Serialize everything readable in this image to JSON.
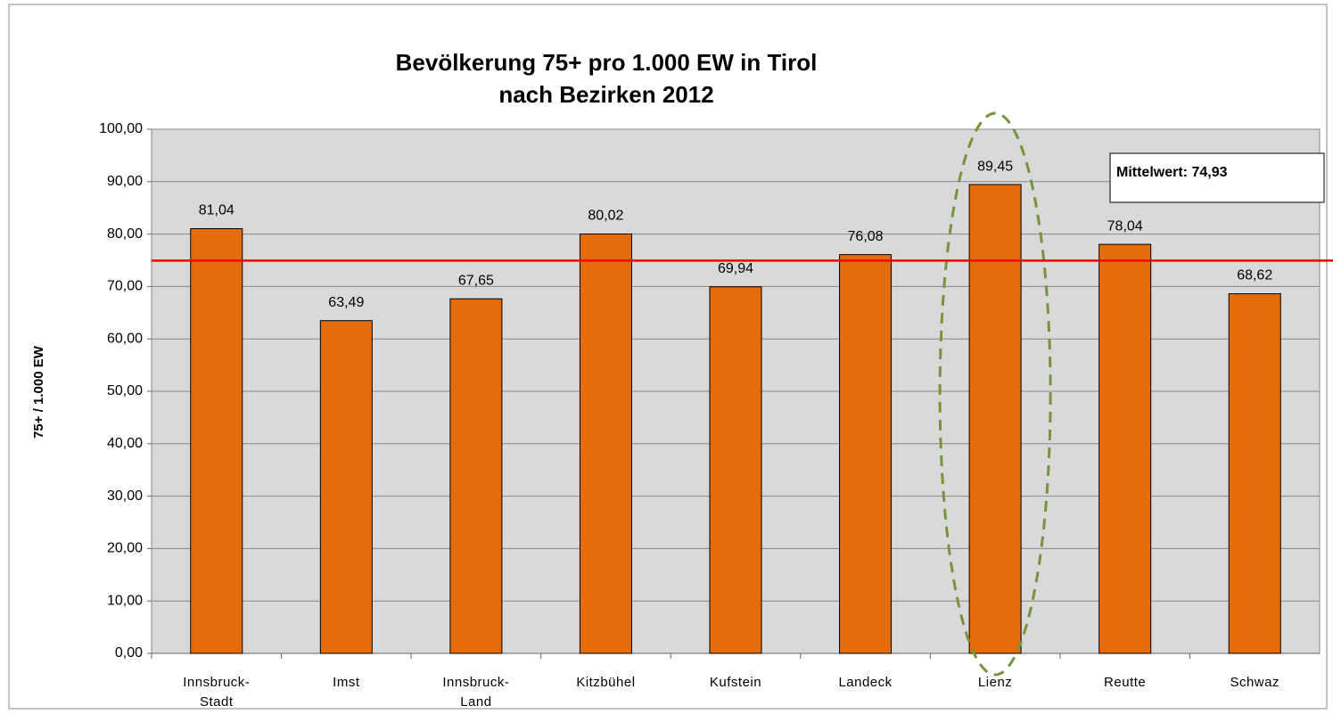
{
  "chart_data": {
    "type": "bar",
    "title": [
      "Bevölkerung 75+ pro 1.000 EW in Tirol",
      "nach Bezirken  2012"
    ],
    "y_label": "75+ / 1.000 EW",
    "categories": [
      "Innsbruck-Stadt",
      "Imst",
      "Innsbruck-Land",
      "Kitzbühel",
      "Kufstein",
      "Landeck",
      "Lienz",
      "Reutte",
      "Schwaz"
    ],
    "values": [
      81.04,
      63.49,
      67.65,
      80.02,
      69.94,
      76.08,
      89.45,
      78.04,
      68.62
    ],
    "value_labels": [
      "81,04",
      "63,49",
      "67,65",
      "80,02",
      "69,94",
      "76,08",
      "89,45",
      "78,04",
      "68,62"
    ],
    "color": "#e46c0a",
    "ylim": [
      0,
      100
    ],
    "yticks": [
      {
        "value": 0,
        "label": "0,00"
      },
      {
        "value": 10,
        "label": "10,00"
      },
      {
        "value": 20,
        "label": "20,00"
      },
      {
        "value": 30,
        "label": "30,00"
      },
      {
        "value": 40,
        "label": "40,00"
      },
      {
        "value": 50,
        "label": "50,00"
      },
      {
        "value": 60,
        "label": "60,00"
      },
      {
        "value": 70,
        "label": "70,00"
      },
      {
        "value": 80,
        "label": "80,00"
      },
      {
        "value": 90,
        "label": "90,00"
      },
      {
        "value": 100,
        "label": "100,00"
      }
    ],
    "grid": true,
    "mean_line": {
      "value": 74.93,
      "label": "Mittelwert: 74,93",
      "color": "#ff0000"
    },
    "highlight": "Lienz"
  }
}
